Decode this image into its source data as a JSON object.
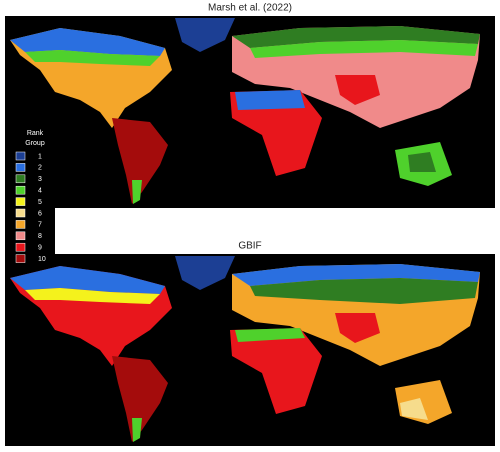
{
  "top_title": "Marsh et al. (2022)",
  "bottom_title": "GBIF",
  "legend": {
    "title_lines": [
      "Rank",
      "Group"
    ],
    "items": [
      {
        "label": "1",
        "color": "#1c3f94"
      },
      {
        "label": "2",
        "color": "#2a6fe0"
      },
      {
        "label": "3",
        "color": "#2f7d22"
      },
      {
        "label": "4",
        "color": "#4fd12c"
      },
      {
        "label": "5",
        "color": "#f4f21c"
      },
      {
        "label": "6",
        "color": "#f6dc8c"
      },
      {
        "label": "7",
        "color": "#f4a62a"
      },
      {
        "label": "8",
        "color": "#f08a8a"
      },
      {
        "label": "9",
        "color": "#e8161c"
      },
      {
        "label": "10",
        "color": "#a40c0c"
      }
    ]
  }
}
